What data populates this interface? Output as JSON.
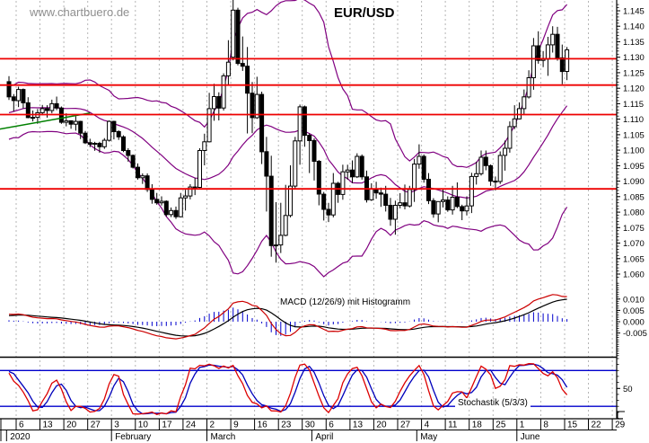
{
  "watermark": "www.chartbuero.de",
  "title": "EUR/USD",
  "indicator_labels": {
    "macd": "MACD (12/26/9) mit Histogramm",
    "stochastic": "Stochastik (5/3/3)"
  },
  "colors": {
    "background": "#ffffff",
    "grid": "#b5b5b5",
    "candle_up_fill": "#ffffff",
    "candle_down_fill": "#000000",
    "candle_outline": "#000000",
    "bollinger": "#800080",
    "trendline": "#008000",
    "horizontal_lines": "#ee0000",
    "macd_line": "#cc0000",
    "macd_signal": "#000000",
    "macd_histogram": "#0000cc",
    "stoch_k": "#dd0000",
    "stoch_d": "#0000bb",
    "stoch_ref": "#0000cc",
    "axis": "#000000",
    "watermark": "#8f8f8f"
  },
  "chart_data": {
    "type": "candlestick",
    "instrument": "EUR/USD",
    "timeframe": "daily",
    "price_axis": {
      "min": 1.0585,
      "max": 1.1475,
      "tick_step": 0.005,
      "minor_step": 0.001,
      "labels": [
        "1.145",
        "1.140",
        "1.135",
        "1.130",
        "1.125",
        "1.120",
        "1.115",
        "1.110",
        "1.105",
        "1.100",
        "1.095",
        "1.090",
        "1.085",
        "1.080",
        "1.075",
        "1.070",
        "1.065",
        "1.060"
      ]
    },
    "horizontal_lines": [
      1.1295,
      1.121,
      1.1115,
      1.0875
    ],
    "trendline": {
      "from_index": -2,
      "from_price": 1.1068,
      "to_index": 17,
      "to_price": 1.112
    },
    "x_axis": {
      "week_ticks": [
        [
          2,
          "6"
        ],
        [
          7,
          "13"
        ],
        [
          12,
          "20"
        ],
        [
          17,
          "27"
        ],
        [
          22,
          "3"
        ],
        [
          27,
          "10"
        ],
        [
          32,
          "17"
        ],
        [
          37,
          "24"
        ],
        [
          42,
          "2"
        ],
        [
          47,
          "9"
        ],
        [
          52,
          "16"
        ],
        [
          57,
          "23"
        ],
        [
          62,
          "30"
        ],
        [
          67,
          "6"
        ],
        [
          72,
          "13"
        ],
        [
          77,
          "20"
        ],
        [
          82,
          "27"
        ],
        [
          87,
          "4"
        ],
        [
          92,
          "11"
        ],
        [
          97,
          "18"
        ],
        [
          102,
          "25"
        ],
        [
          107,
          "1"
        ],
        [
          112,
          "8"
        ],
        [
          117,
          "15"
        ],
        [
          122,
          "22"
        ],
        [
          127,
          "29"
        ]
      ],
      "months": [
        [
          0,
          "2020"
        ],
        [
          22,
          "February"
        ],
        [
          42,
          "March"
        ],
        [
          64,
          "April"
        ],
        [
          86,
          "May"
        ],
        [
          107,
          "June"
        ]
      ]
    },
    "indicators": {
      "bollinger": {
        "period": 20,
        "stddev": 2
      },
      "macd": {
        "fast": 12,
        "slow": 26,
        "signal": 9,
        "axis_labels": [
          "0.010",
          "0.005",
          "0.000",
          "-0.005"
        ],
        "axis_values": [
          0.01,
          0.005,
          0.0,
          -0.005
        ]
      },
      "stochastic": {
        "k": 5,
        "slow": 3,
        "d": 3,
        "ref_lines": [
          80,
          20
        ],
        "axis_labels": [
          "50"
        ],
        "axis_values": [
          50
        ]
      }
    },
    "warmup_ohlc": [
      [
        "2019-11-25",
        1.102,
        1.1034,
        1.1003,
        1.1016
      ],
      [
        "2019-11-26",
        1.1016,
        1.1028,
        1.1005,
        1.1021
      ],
      [
        "2019-11-27",
        1.1021,
        1.1026,
        1.0992,
        1.1001
      ],
      [
        "2019-11-28",
        1.1001,
        1.1017,
        1.0994,
        1.1009
      ],
      [
        "2019-11-29",
        1.1009,
        1.1029,
        1.0998,
        1.1018
      ],
      [
        "2019-12-02",
        1.1018,
        1.109,
        1.1012,
        1.1078
      ],
      [
        "2019-12-03",
        1.1078,
        1.1094,
        1.1063,
        1.1082
      ],
      [
        "2019-12-04",
        1.1082,
        1.1088,
        1.1066,
        1.1077
      ],
      [
        "2019-12-05",
        1.1077,
        1.111,
        1.1072,
        1.1103
      ],
      [
        "2019-12-06",
        1.1103,
        1.1112,
        1.1052,
        1.1059
      ],
      [
        "2019-12-09",
        1.1059,
        1.1078,
        1.1051,
        1.1064
      ],
      [
        "2019-12-10",
        1.1064,
        1.1099,
        1.1058,
        1.1092
      ],
      [
        "2019-12-11",
        1.1092,
        1.1139,
        1.1082,
        1.1131
      ],
      [
        "2019-12-12",
        1.1131,
        1.1154,
        1.1102,
        1.113
      ],
      [
        "2019-12-13",
        1.113,
        1.1173,
        1.111,
        1.112
      ],
      [
        "2019-12-16",
        1.112,
        1.1156,
        1.1113,
        1.1145
      ],
      [
        "2019-12-17",
        1.1145,
        1.1159,
        1.1129,
        1.1152
      ],
      [
        "2019-12-18",
        1.1152,
        1.1155,
        1.111,
        1.1113
      ],
      [
        "2019-12-19",
        1.1113,
        1.1143,
        1.1106,
        1.1123
      ],
      [
        "2019-12-20",
        1.1123,
        1.1128,
        1.1066,
        1.1077
      ],
      [
        "2019-12-23",
        1.1077,
        1.1096,
        1.1069,
        1.1089
      ],
      [
        "2019-12-24",
        1.1089,
        1.1098,
        1.1081,
        1.1087
      ],
      [
        "2019-12-26",
        1.1087,
        1.1107,
        1.108,
        1.1098
      ],
      [
        "2019-12-27",
        1.1098,
        1.1188,
        1.1096,
        1.1176
      ],
      [
        "2019-12-30",
        1.1176,
        1.1221,
        1.1164,
        1.1199
      ],
      [
        "2019-12-31",
        1.1199,
        1.1239,
        1.1193,
        1.1213
      ]
    ],
    "ohlc": [
      [
        "2020-01-02",
        1.1221,
        1.1239,
        1.1162,
        1.1172
      ],
      [
        "2020-01-03",
        1.1172,
        1.1181,
        1.1125,
        1.116
      ],
      [
        "2020-01-06",
        1.116,
        1.1205,
        1.1139,
        1.1196
      ],
      [
        "2020-01-07",
        1.1196,
        1.1199,
        1.1135,
        1.1153
      ],
      [
        "2020-01-08",
        1.1153,
        1.1171,
        1.1103,
        1.1105
      ],
      [
        "2020-01-09",
        1.1105,
        1.1128,
        1.1093,
        1.1106
      ],
      [
        "2020-01-10",
        1.1106,
        1.1133,
        1.1085,
        1.1121
      ],
      [
        "2020-01-13",
        1.1121,
        1.1146,
        1.1113,
        1.1134
      ],
      [
        "2020-01-14",
        1.1134,
        1.1145,
        1.1105,
        1.1128
      ],
      [
        "2020-01-15",
        1.1128,
        1.1163,
        1.1119,
        1.115
      ],
      [
        "2020-01-16",
        1.115,
        1.1173,
        1.1129,
        1.1136
      ],
      [
        "2020-01-17",
        1.1136,
        1.1141,
        1.1085,
        1.109
      ],
      [
        "2020-01-20",
        1.109,
        1.1119,
        1.1077,
        1.1095
      ],
      [
        "2020-01-21",
        1.1095,
        1.1096,
        1.1069,
        1.1084
      ],
      [
        "2020-01-22",
        1.1084,
        1.1109,
        1.1063,
        1.1093
      ],
      [
        "2020-01-23",
        1.1093,
        1.1095,
        1.1036,
        1.1055
      ],
      [
        "2020-01-24",
        1.1055,
        1.1062,
        1.102,
        1.1024
      ],
      [
        "2020-01-27",
        1.1024,
        1.1037,
        1.101,
        1.1019
      ],
      [
        "2020-01-28",
        1.1019,
        1.1027,
        1.0998,
        1.1022
      ],
      [
        "2020-01-29",
        1.1022,
        1.1027,
        1.0992,
        1.1011
      ],
      [
        "2020-01-30",
        1.1011,
        1.1039,
        1.1004,
        1.1032
      ],
      [
        "2020-01-31",
        1.1032,
        1.1096,
        1.1028,
        1.1093
      ],
      [
        "2020-02-03",
        1.1093,
        1.1095,
        1.1035,
        1.106
      ],
      [
        "2020-02-04",
        1.106,
        1.1064,
        1.1033,
        1.1043
      ],
      [
        "2020-02-05",
        1.1043,
        1.1048,
        1.0994,
        1.0999
      ],
      [
        "2020-02-06",
        1.0999,
        1.1006,
        1.0963,
        1.0983
      ],
      [
        "2020-02-07",
        1.0983,
        1.0986,
        1.0941,
        1.0945
      ],
      [
        "2020-02-10",
        1.0945,
        1.0957,
        1.0905,
        1.0911
      ],
      [
        "2020-02-11",
        1.0911,
        1.0925,
        1.0891,
        1.0917
      ],
      [
        "2020-02-12",
        1.0917,
        1.0925,
        1.0865,
        1.0873
      ],
      [
        "2020-02-13",
        1.0873,
        1.089,
        1.0827,
        1.0841
      ],
      [
        "2020-02-14",
        1.0841,
        1.0862,
        1.0824,
        1.083
      ],
      [
        "2020-02-17",
        1.083,
        1.0851,
        1.0821,
        1.0835
      ],
      [
        "2020-02-18",
        1.0835,
        1.0838,
        1.0786,
        1.0792
      ],
      [
        "2020-02-19",
        1.0792,
        1.0815,
        1.0784,
        1.0805
      ],
      [
        "2020-02-20",
        1.0805,
        1.0818,
        1.0778,
        1.0785
      ],
      [
        "2020-02-21",
        1.0785,
        1.0862,
        1.0783,
        1.0846
      ],
      [
        "2020-02-24",
        1.0846,
        1.0872,
        1.0805,
        1.0852
      ],
      [
        "2020-02-25",
        1.0852,
        1.089,
        1.0841,
        1.0881
      ],
      [
        "2020-02-26",
        1.0881,
        1.091,
        1.0855,
        1.088
      ],
      [
        "2020-02-27",
        1.088,
        1.1006,
        1.0878,
        1.0999
      ],
      [
        "2020-02-28",
        1.0999,
        1.1053,
        1.0951,
        1.1027
      ],
      [
        "2020-03-02",
        1.1027,
        1.1185,
        1.1025,
        1.1134
      ],
      [
        "2020-03-03",
        1.1134,
        1.1214,
        1.1095,
        1.1173
      ],
      [
        "2020-03-04",
        1.1173,
        1.1187,
        1.1096,
        1.1136
      ],
      [
        "2020-03-05",
        1.1136,
        1.1248,
        1.1128,
        1.124
      ],
      [
        "2020-03-06",
        1.124,
        1.1355,
        1.1212,
        1.1284
      ],
      [
        "2020-03-09",
        1.13,
        1.1495,
        1.129,
        1.1452
      ],
      [
        "2020-03-10",
        1.1452,
        1.146,
        1.1274,
        1.128
      ],
      [
        "2020-03-11",
        1.128,
        1.1367,
        1.1256,
        1.1271
      ],
      [
        "2020-03-12",
        1.1271,
        1.1333,
        1.1054,
        1.1184
      ],
      [
        "2020-03-13",
        1.1184,
        1.122,
        1.1055,
        1.1105
      ],
      [
        "2020-03-16",
        1.1105,
        1.1237,
        1.1101,
        1.118
      ],
      [
        "2020-03-17",
        1.118,
        1.1189,
        1.0955,
        1.0995
      ],
      [
        "2020-03-18",
        1.0995,
        1.1043,
        1.0802,
        1.0916
      ],
      [
        "2020-03-19",
        1.0916,
        1.0982,
        1.0656,
        1.0692
      ],
      [
        "2020-03-20",
        1.0692,
        1.0832,
        1.0637,
        1.0694
      ],
      [
        "2020-03-23",
        1.0694,
        1.083,
        1.0668,
        1.0725
      ],
      [
        "2020-03-24",
        1.0725,
        1.0888,
        1.0722,
        1.0789
      ],
      [
        "2020-03-25",
        1.0789,
        1.0951,
        1.0783,
        1.0884
      ],
      [
        "2020-03-26",
        1.0884,
        1.1043,
        1.0877,
        1.103
      ],
      [
        "2020-03-27",
        1.103,
        1.1147,
        1.0953,
        1.114
      ],
      [
        "2020-03-30",
        1.114,
        1.1144,
        1.1011,
        1.1048
      ],
      [
        "2020-03-31",
        1.1048,
        1.1054,
        1.0926,
        1.1031
      ],
      [
        "2020-04-01",
        1.1031,
        1.1038,
        1.0902,
        1.0964
      ],
      [
        "2020-04-02",
        1.0964,
        1.0968,
        1.0822,
        1.0858
      ],
      [
        "2020-04-03",
        1.0858,
        1.0865,
        1.0773,
        1.0809
      ],
      [
        "2020-04-06",
        1.0809,
        1.083,
        1.0768,
        1.0791
      ],
      [
        "2020-04-07",
        1.0791,
        1.0926,
        1.0783,
        1.0893
      ],
      [
        "2020-04-08",
        1.0893,
        1.0898,
        1.083,
        1.0857
      ],
      [
        "2020-04-09",
        1.0857,
        1.0953,
        1.084,
        1.093
      ],
      [
        "2020-04-10",
        1.093,
        1.0953,
        1.0905,
        1.0936
      ],
      [
        "2020-04-13",
        1.0936,
        1.0967,
        1.0894,
        1.0914
      ],
      [
        "2020-04-14",
        1.0914,
        1.099,
        1.091,
        1.098
      ],
      [
        "2020-04-15",
        1.098,
        1.0986,
        1.0905,
        1.0914
      ],
      [
        "2020-04-16",
        1.0914,
        1.0934,
        1.0831,
        1.084
      ],
      [
        "2020-04-17",
        1.084,
        1.0893,
        1.0836,
        1.0875
      ],
      [
        "2020-04-20",
        1.0875,
        1.0898,
        1.0843,
        1.0862
      ],
      [
        "2020-04-21",
        1.0862,
        1.0879,
        1.0817,
        1.0858
      ],
      [
        "2020-04-22",
        1.0858,
        1.0885,
        1.0802,
        1.0822
      ],
      [
        "2020-04-23",
        1.0822,
        1.0846,
        1.0756,
        1.0777
      ],
      [
        "2020-04-24",
        1.0777,
        1.0837,
        1.0727,
        1.0822
      ],
      [
        "2020-04-27",
        1.0822,
        1.0861,
        1.0812,
        1.083
      ],
      [
        "2020-04-28",
        1.083,
        1.0889,
        1.0809,
        1.082
      ],
      [
        "2020-04-29",
        1.082,
        1.0885,
        1.0815,
        1.0873
      ],
      [
        "2020-04-30",
        1.0873,
        1.0972,
        1.0833,
        1.0955
      ],
      [
        "2020-05-01",
        1.0955,
        1.1019,
        1.094,
        1.098
      ],
      [
        "2020-05-04",
        1.098,
        1.0986,
        1.0895,
        1.0906
      ],
      [
        "2020-05-05",
        1.0906,
        1.0926,
        1.0826,
        1.0837
      ],
      [
        "2020-05-06",
        1.0837,
        1.0845,
        1.0782,
        1.0794
      ],
      [
        "2020-05-07",
        1.0794,
        1.0835,
        1.0767,
        1.0834
      ],
      [
        "2020-05-08",
        1.0834,
        1.0875,
        1.0815,
        1.0839
      ],
      [
        "2020-05-11",
        1.0839,
        1.0851,
        1.0801,
        1.0807
      ],
      [
        "2020-05-12",
        1.0807,
        1.0885,
        1.0792,
        1.0848
      ],
      [
        "2020-05-13",
        1.0848,
        1.0896,
        1.0813,
        1.0818
      ],
      [
        "2020-05-14",
        1.0818,
        1.0824,
        1.0774,
        1.0804
      ],
      [
        "2020-05-15",
        1.0804,
        1.0851,
        1.0789,
        1.082
      ],
      [
        "2020-05-18",
        1.082,
        1.0927,
        1.0797,
        1.0915
      ],
      [
        "2020-05-19",
        1.0915,
        1.0963,
        1.0889,
        1.0924
      ],
      [
        "2020-05-20",
        1.0924,
        1.0999,
        1.0918,
        1.0977
      ],
      [
        "2020-05-21",
        1.0977,
        1.0999,
        1.0935,
        1.095
      ],
      [
        "2020-05-22",
        1.095,
        1.0954,
        1.0885,
        1.09
      ],
      [
        "2020-05-25",
        1.09,
        1.0915,
        1.087,
        1.0899
      ],
      [
        "2020-05-26",
        1.0899,
        1.0996,
        1.0891,
        1.0983
      ],
      [
        "2020-05-27",
        1.0983,
        1.1031,
        1.0934,
        1.1006
      ],
      [
        "2020-05-28",
        1.1006,
        1.1093,
        1.0992,
        1.1076
      ],
      [
        "2020-05-29",
        1.1076,
        1.1145,
        1.1068,
        1.1101
      ],
      [
        "2020-06-01",
        1.1101,
        1.1154,
        1.1099,
        1.1134
      ],
      [
        "2020-06-02",
        1.1134,
        1.1196,
        1.1115,
        1.1172
      ],
      [
        "2020-06-03",
        1.1172,
        1.1258,
        1.1167,
        1.1234
      ],
      [
        "2020-06-04",
        1.1234,
        1.1362,
        1.1195,
        1.1337
      ],
      [
        "2020-06-05",
        1.1337,
        1.1384,
        1.1279,
        1.129
      ],
      [
        "2020-06-08",
        1.129,
        1.132,
        1.1268,
        1.1294
      ],
      [
        "2020-06-09",
        1.1294,
        1.1366,
        1.124,
        1.134
      ],
      [
        "2020-06-10",
        1.134,
        1.14,
        1.1315,
        1.1374
      ],
      [
        "2020-06-11",
        1.1374,
        1.1398,
        1.1289,
        1.1298
      ],
      [
        "2020-06-12",
        1.1298,
        1.1341,
        1.1213,
        1.1254
      ],
      [
        "2020-06-15",
        1.1254,
        1.1333,
        1.1226,
        1.1324
      ]
    ]
  }
}
